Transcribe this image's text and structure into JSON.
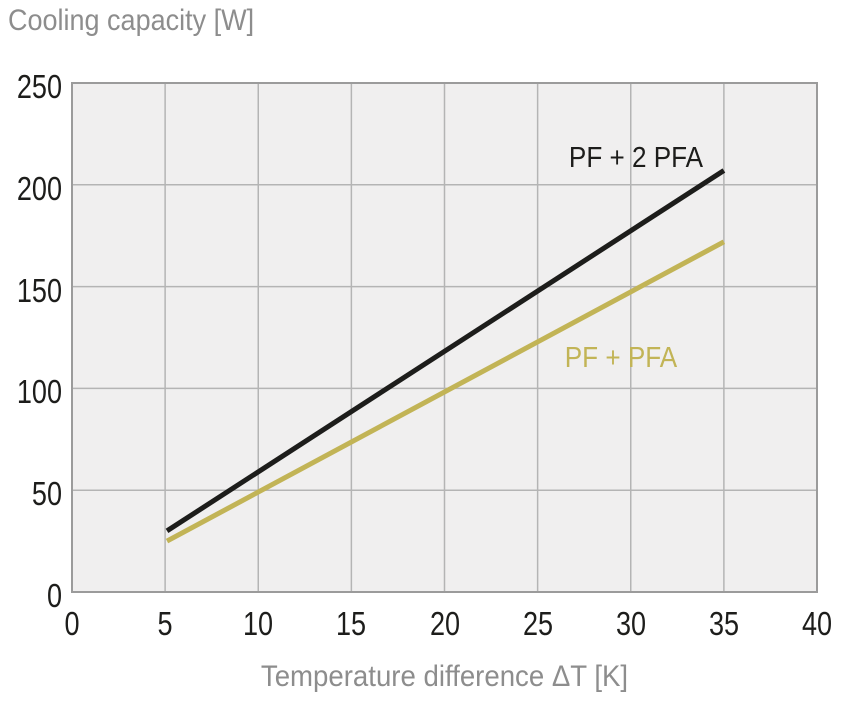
{
  "chart_data": {
    "type": "line",
    "title": "Cooling capacity [W]",
    "xlabel": "Temperature difference ΔT [K]",
    "ylabel": "Cooling capacity [W]",
    "xlim": [
      0,
      40
    ],
    "ylim": [
      0,
      250
    ],
    "xticks": [
      0,
      5,
      10,
      15,
      20,
      25,
      30,
      35,
      40
    ],
    "yticks": [
      0,
      50,
      100,
      150,
      200,
      250
    ],
    "grid": true,
    "legend_position": "inline-labels",
    "series": [
      {
        "name": "PF + 2 PFA",
        "color": "#1d1d1b",
        "stroke_width": 5,
        "points": [
          [
            5.1,
            30
          ],
          [
            35,
            207
          ]
        ],
        "label": {
          "text": "PF + 2 PFA",
          "x": 30.3,
          "y": 213
        }
      },
      {
        "name": "PF + PFA",
        "color": "#c2b456",
        "stroke_width": 5,
        "points": [
          [
            5.1,
            25
          ],
          [
            35,
            172
          ]
        ],
        "label": {
          "text": "PF + PFA",
          "x": 29.5,
          "y": 115
        }
      }
    ]
  },
  "colors": {
    "page_bg": "#ffffff",
    "plot_bg": "#f0efef",
    "grid": "#b4b4b4",
    "border": "#9b9b9b",
    "tick_text": "#1d1d1b",
    "axis_title_text": "#8d8d8d"
  }
}
